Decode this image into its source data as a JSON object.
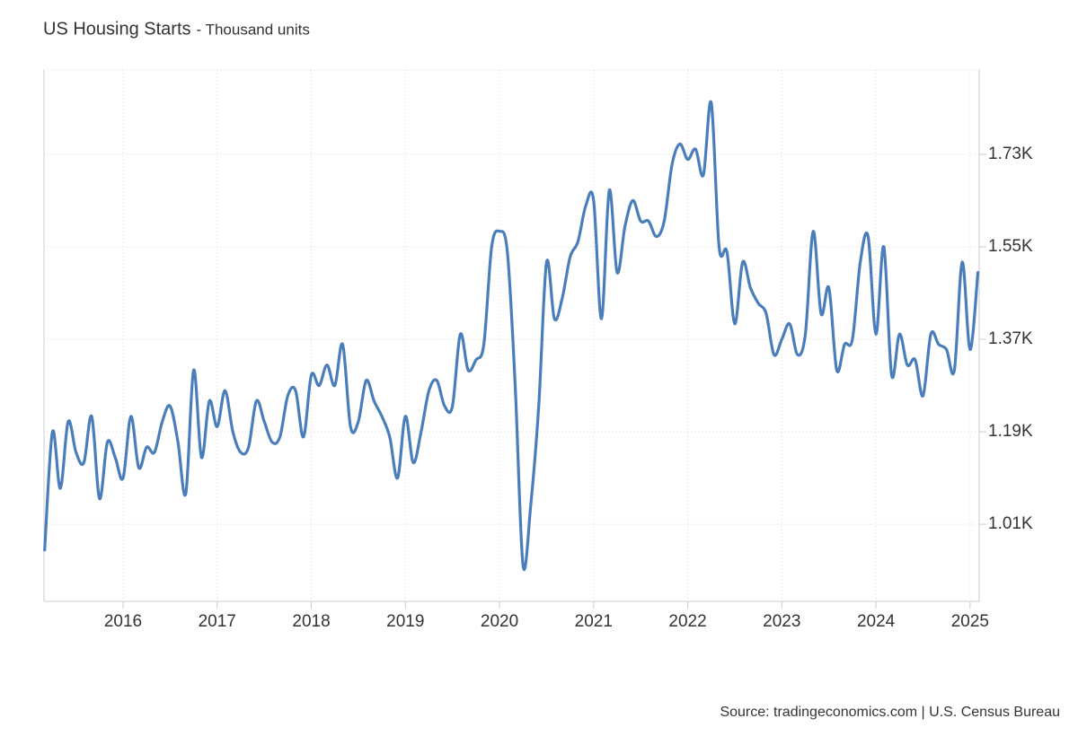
{
  "chart_data": {
    "type": "line",
    "title": "US Housing Starts",
    "subtitle": "- Thousand units",
    "source": "Source: tradingeconomics.com | U.S. Census Bureau",
    "categories": [
      null,
      null,
      null,
      null,
      null,
      null,
      null,
      null,
      null,
      null,
      "2016",
      null,
      null,
      null,
      null,
      null,
      null,
      null,
      null,
      null,
      null,
      null,
      "2017",
      null,
      null,
      null,
      null,
      null,
      null,
      null,
      null,
      null,
      null,
      null,
      "2018",
      null,
      null,
      null,
      null,
      null,
      null,
      null,
      null,
      null,
      null,
      null,
      "2019",
      null,
      null,
      null,
      null,
      null,
      null,
      null,
      null,
      null,
      null,
      null,
      "2020",
      null,
      null,
      null,
      null,
      null,
      null,
      null,
      null,
      null,
      null,
      null,
      "2021",
      null,
      null,
      null,
      null,
      null,
      null,
      null,
      null,
      null,
      null,
      null,
      "2022",
      null,
      null,
      null,
      null,
      null,
      null,
      null,
      null,
      null,
      null,
      null,
      "2023",
      null,
      null,
      null,
      null,
      null,
      null,
      null,
      null,
      null,
      null,
      null,
      "2024",
      null,
      null,
      null,
      null,
      null,
      null,
      null,
      null,
      null,
      null,
      null,
      "2025",
      null
    ],
    "series": [
      {
        "name": "Housing Starts",
        "color": "#4a7ebb",
        "values": [
          960,
          1190,
          1080,
          1210,
          1150,
          1130,
          1220,
          1060,
          1170,
          1140,
          1100,
          1220,
          1120,
          1160,
          1150,
          1210,
          1240,
          1170,
          1070,
          1310,
          1140,
          1250,
          1200,
          1270,
          1190,
          1150,
          1160,
          1250,
          1210,
          1170,
          1180,
          1260,
          1270,
          1180,
          1300,
          1280,
          1320,
          1280,
          1360,
          1200,
          1210,
          1290,
          1250,
          1220,
          1180,
          1100,
          1220,
          1130,
          1190,
          1270,
          1290,
          1240,
          1240,
          1380,
          1310,
          1330,
          1360,
          1550,
          1580,
          1540,
          1280,
          930,
          1050,
          1240,
          1520,
          1410,
          1450,
          1530,
          1560,
          1630,
          1640,
          1410,
          1660,
          1500,
          1590,
          1640,
          1600,
          1600,
          1570,
          1600,
          1710,
          1750,
          1720,
          1740,
          1690,
          1830,
          1550,
          1540,
          1400,
          1520,
          1470,
          1440,
          1420,
          1340,
          1370,
          1400,
          1340,
          1380,
          1580,
          1420,
          1470,
          1310,
          1360,
          1370,
          1520,
          1570,
          1380,
          1550,
          1300,
          1380,
          1320,
          1330,
          1260,
          1380,
          1360,
          1350,
          1310,
          1520,
          1350,
          1500
        ]
      }
    ],
    "ylim": [
      860,
      1894
    ],
    "yticks": [
      {
        "value": 1010,
        "label": "1.01K"
      },
      {
        "value": 1190,
        "label": "1.19K"
      },
      {
        "value": 1370,
        "label": "1.37K"
      },
      {
        "value": 1550,
        "label": "1.55K"
      },
      {
        "value": 1730,
        "label": "1.73K"
      }
    ],
    "grid": true
  }
}
